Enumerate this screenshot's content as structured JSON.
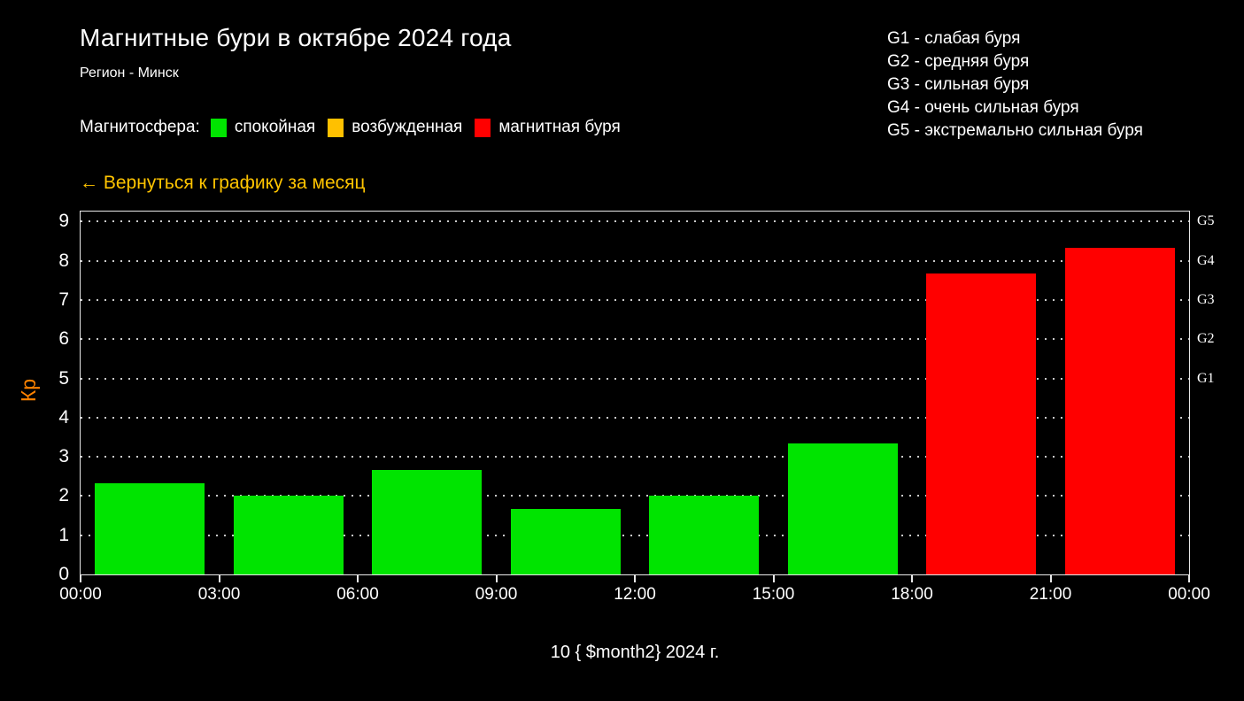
{
  "header": {
    "title": "Магнитные бури в октябре 2024 года",
    "region": "Регион - Минск"
  },
  "storm_scale": [
    "G1 - слабая буря",
    "G2 - средняя буря",
    "G3 - сильная буря",
    "G4 - очень сильная буря",
    "G5 - экстремально сильная буря"
  ],
  "magnetosphere_legend": {
    "label": "Магнитосфера:",
    "items": [
      {
        "label": "спокойная",
        "color": "#00e400"
      },
      {
        "label": "возбужденная",
        "color": "#ffc000"
      },
      {
        "label": "магнитная буря",
        "color": "#ff0000"
      }
    ]
  },
  "back_link": {
    "label": "← Вернуться к графику за месяц",
    "color": "#ffc400"
  },
  "colors": {
    "background": "#000000",
    "text": "#ffffff",
    "kp_axis_label": "#ff8200",
    "frame": "#e9e9e9"
  },
  "chart_data": {
    "type": "bar",
    "title": "Kp index bars for one day, 3-hour intervals",
    "categories": [
      "00:00–03:00",
      "03:00–06:00",
      "06:00–09:00",
      "09:00–12:00",
      "12:00–15:00",
      "15:00–18:00",
      "18:00–21:00",
      "21:00–00:00"
    ],
    "values": [
      2.33,
      2.0,
      2.67,
      1.67,
      2.0,
      3.33,
      7.67,
      8.33
    ],
    "bar_colors": [
      "#00e400",
      "#00e400",
      "#00e400",
      "#00e400",
      "#00e400",
      "#00e400",
      "#ff0000",
      "#ff0000"
    ],
    "x_tick_labels": [
      "00:00",
      "03:00",
      "06:00",
      "09:00",
      "12:00",
      "15:00",
      "18:00",
      "21:00",
      "00:00"
    ],
    "y_ticks": [
      0,
      1,
      2,
      3,
      4,
      5,
      6,
      7,
      8,
      9
    ],
    "ylim": [
      0,
      9.3
    ],
    "ylabel": "Кр",
    "xlabel": "10 { $month2} 2024 г.",
    "right_axis_labels": [
      {
        "value": 5,
        "label": "G1"
      },
      {
        "value": 6,
        "label": "G2"
      },
      {
        "value": 7,
        "label": "G3"
      },
      {
        "value": 8,
        "label": "G4"
      },
      {
        "value": 9,
        "label": "G5"
      }
    ],
    "grid": "horizontal-dotted",
    "legend_position": "top-left"
  }
}
